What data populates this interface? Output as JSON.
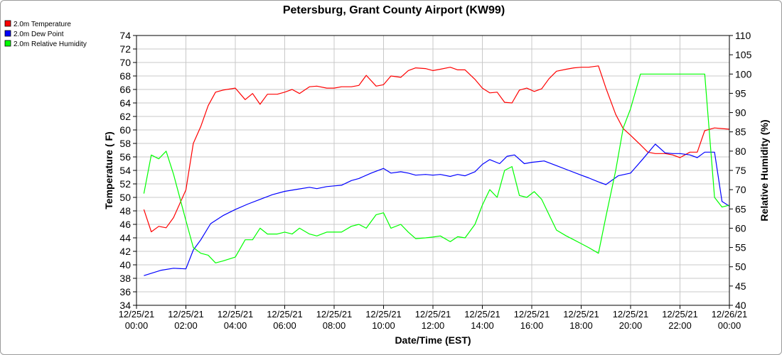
{
  "chart_data": {
    "type": "line",
    "title": "Petersburg, Grant County Airport (KW99)",
    "xlabel": "Date/Time (EST)",
    "ylabel": "Temperature ( F)",
    "y2label": "Relative Humidity (%)",
    "xlim": [
      "12/25/21 00:00",
      "12/26/21 00:00"
    ],
    "ylim": [
      34,
      74
    ],
    "y2lim": [
      40,
      110
    ],
    "grid": true,
    "legend_position": "top-left",
    "x_ticks": [
      {
        "hour": 0,
        "line1": "12/25/21",
        "line2": "00:00"
      },
      {
        "hour": 2,
        "line1": "12/25/21",
        "line2": "02:00"
      },
      {
        "hour": 4,
        "line1": "12/25/21",
        "line2": "04:00"
      },
      {
        "hour": 6,
        "line1": "12/25/21",
        "line2": "06:00"
      },
      {
        "hour": 8,
        "line1": "12/25/21",
        "line2": "08:00"
      },
      {
        "hour": 10,
        "line1": "12/25/21",
        "line2": "10:00"
      },
      {
        "hour": 12,
        "line1": "12/25/21",
        "line2": "12:00"
      },
      {
        "hour": 14,
        "line1": "12/25/21",
        "line2": "14:00"
      },
      {
        "hour": 16,
        "line1": "12/25/21",
        "line2": "16:00"
      },
      {
        "hour": 18,
        "line1": "12/25/21",
        "line2": "18:00"
      },
      {
        "hour": 20,
        "line1": "12/25/21",
        "line2": "20:00"
      },
      {
        "hour": 22,
        "line1": "12/25/21",
        "line2": "22:00"
      },
      {
        "hour": 24,
        "line1": "12/26/21",
        "line2": "00:00"
      }
    ],
    "y_ticks": [
      "34",
      "36",
      "38",
      "40",
      "42",
      "44",
      "46",
      "48",
      "50",
      "52",
      "54",
      "56",
      "58",
      "60",
      "62",
      "64",
      "66",
      "68",
      "70",
      "72",
      "74"
    ],
    "y2_ticks": [
      "40",
      "45",
      "50",
      "55",
      "60",
      "65",
      "70",
      "75",
      "80",
      "85",
      "90",
      "95",
      "100",
      "105",
      "110"
    ],
    "series": [
      {
        "name": "2.0m Temperature",
        "axis": "left",
        "color": "#ff0000",
        "x_hours": [
          0.3,
          0.6,
          0.9,
          1.2,
          1.5,
          2.0,
          2.3,
          2.6,
          2.9,
          3.2,
          3.5,
          4.0,
          4.4,
          4.7,
          5.0,
          5.3,
          5.7,
          6.0,
          6.3,
          6.6,
          7.0,
          7.3,
          7.7,
          8.0,
          8.3,
          8.7,
          9.0,
          9.3,
          9.7,
          10.0,
          10.3,
          10.7,
          11.0,
          11.3,
          11.7,
          12.0,
          12.3,
          12.7,
          13.0,
          13.3,
          13.7,
          14.0,
          14.3,
          14.6,
          14.9,
          15.2,
          15.5,
          15.8,
          16.1,
          16.4,
          16.7,
          17.0,
          17.4,
          17.7,
          18.0,
          18.3,
          18.7,
          19.0,
          19.4,
          19.7,
          20.0,
          20.4,
          20.7,
          21.0,
          21.4,
          21.7,
          22.0,
          22.4,
          22.7,
          23.0,
          23.4,
          23.7,
          24.0
        ],
        "values": [
          48.2,
          44.9,
          45.7,
          45.5,
          47.0,
          51.1,
          58.0,
          60.5,
          63.6,
          65.6,
          65.9,
          66.2,
          64.5,
          65.4,
          63.8,
          65.3,
          65.3,
          65.6,
          66.0,
          65.4,
          66.4,
          66.5,
          66.2,
          66.2,
          66.4,
          66.4,
          66.6,
          68.1,
          66.5,
          66.7,
          68.0,
          67.8,
          68.8,
          69.2,
          69.1,
          68.8,
          69.0,
          69.3,
          68.9,
          68.9,
          67.5,
          66.2,
          65.5,
          65.6,
          64.1,
          64.0,
          65.9,
          66.2,
          65.7,
          66.1,
          67.6,
          68.7,
          69.0,
          69.2,
          69.3,
          69.3,
          69.5,
          66.2,
          62.3,
          60.2,
          59.2,
          57.8,
          56.7,
          56.5,
          56.5,
          56.3,
          55.9,
          56.7,
          56.7,
          59.9,
          60.3,
          60.2,
          60.1
        ]
      },
      {
        "name": "2.0m Dew Point",
        "axis": "left",
        "color": "#0000ff",
        "x_hours": [
          0.3,
          1.0,
          1.5,
          2.0,
          2.3,
          2.6,
          3.0,
          3.5,
          4.0,
          4.5,
          5.0,
          5.5,
          6.0,
          6.5,
          7.0,
          7.3,
          7.7,
          8.0,
          8.3,
          8.7,
          9.0,
          9.5,
          10.0,
          10.3,
          10.7,
          11.0,
          11.3,
          11.7,
          12.0,
          12.3,
          12.7,
          13.0,
          13.3,
          13.7,
          14.0,
          14.3,
          14.7,
          15.0,
          15.3,
          15.7,
          16.0,
          16.5,
          17.0,
          17.5,
          18.0,
          18.3,
          18.7,
          19.0,
          19.5,
          20.0,
          20.5,
          21.0,
          21.4,
          21.7,
          22.0,
          22.4,
          22.7,
          23.0,
          23.4,
          23.7,
          24.0
        ],
        "values": [
          38.4,
          39.2,
          39.5,
          39.4,
          42.2,
          43.7,
          46.1,
          47.3,
          48.2,
          49.0,
          49.7,
          50.4,
          50.9,
          51.2,
          51.5,
          51.3,
          51.6,
          51.7,
          51.8,
          52.5,
          52.8,
          53.6,
          54.3,
          53.6,
          53.8,
          53.6,
          53.3,
          53.4,
          53.3,
          53.4,
          53.1,
          53.4,
          53.2,
          53.8,
          54.9,
          55.6,
          55.0,
          56.1,
          56.3,
          55.0,
          55.2,
          55.4,
          54.7,
          54.0,
          53.3,
          52.9,
          52.3,
          51.9,
          53.2,
          53.6,
          55.7,
          57.9,
          56.6,
          56.5,
          56.5,
          56.3,
          55.9,
          56.7,
          56.7,
          49.4,
          48.7
        ]
      },
      {
        "name": "2.0m Relative Humidity",
        "axis": "right",
        "color": "#00ff00",
        "x_hours": [
          0.3,
          0.6,
          0.9,
          1.2,
          1.5,
          2.0,
          2.3,
          2.6,
          2.9,
          3.2,
          3.5,
          4.0,
          4.4,
          4.7,
          5.0,
          5.3,
          5.7,
          6.0,
          6.3,
          6.6,
          7.0,
          7.3,
          7.7,
          8.0,
          8.3,
          8.7,
          9.0,
          9.3,
          9.7,
          10.0,
          10.3,
          10.7,
          11.0,
          11.3,
          11.7,
          12.0,
          12.3,
          12.7,
          13.0,
          13.3,
          13.7,
          14.0,
          14.3,
          14.6,
          14.9,
          15.2,
          15.5,
          15.8,
          16.1,
          16.4,
          16.7,
          17.0,
          17.4,
          17.7,
          18.0,
          18.3,
          18.7,
          19.0,
          19.4,
          19.7,
          20.0,
          20.4,
          20.7,
          21.0,
          21.4,
          21.7,
          22.0,
          22.4,
          22.7,
          23.0,
          23.4,
          23.7,
          24.0
        ],
        "values": [
          69,
          79,
          78,
          80,
          74,
          62,
          55,
          53.5,
          53,
          51,
          51.5,
          52.5,
          57,
          57,
          60,
          58.5,
          58.5,
          59,
          58.5,
          60,
          58.5,
          58,
          59,
          59,
          59,
          60.5,
          61,
          60,
          63.5,
          64,
          60,
          61,
          59,
          57.3,
          57.5,
          57.7,
          58,
          56.5,
          57.8,
          57.5,
          61,
          66,
          70,
          68,
          75,
          76,
          68.5,
          68,
          69.5,
          67.5,
          63.5,
          59.5,
          58,
          57,
          56,
          55,
          53.5,
          63,
          75,
          86,
          91,
          100,
          100,
          100,
          100,
          100,
          100,
          100,
          100,
          100,
          68,
          65.5,
          66
        ]
      }
    ]
  }
}
